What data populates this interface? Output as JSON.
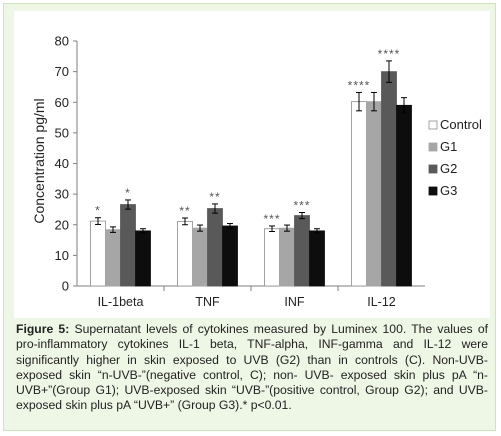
{
  "chart_data": {
    "type": "bar",
    "categories": [
      "IL-1beta",
      "TNF",
      "INF",
      "IL-12"
    ],
    "series": [
      {
        "name": "Control",
        "values": [
          21.2,
          21.1,
          18.7,
          60.2
        ],
        "errors": [
          1.1,
          1.1,
          0.9,
          3.0
        ],
        "color": "#ffffff"
      },
      {
        "name": "G1",
        "values": [
          18.4,
          18.9,
          18.9,
          60.2
        ],
        "errors": [
          0.9,
          1.0,
          1.0,
          3.0
        ],
        "color": "#a6a6a6"
      },
      {
        "name": "G2",
        "values": [
          26.6,
          25.3,
          23.0,
          70.0
        ],
        "errors": [
          1.5,
          1.5,
          1.0,
          3.5
        ],
        "color": "#595959"
      },
      {
        "name": "G3",
        "values": [
          18.0,
          19.6,
          18.0,
          59.0
        ],
        "errors": [
          0.7,
          0.8,
          0.7,
          2.5
        ],
        "color": "#0d0d0d"
      }
    ],
    "annotations": [
      [
        "*",
        "",
        "*",
        ""
      ],
      [
        "**",
        "",
        "**",
        ""
      ],
      [
        "***",
        "",
        "***",
        ""
      ],
      [
        "****",
        "",
        "****",
        ""
      ]
    ],
    "ylabel": "Concentration  pg/ml",
    "ylim": [
      0,
      80
    ],
    "yticks": [
      0,
      10,
      20,
      30,
      40,
      50,
      60,
      70,
      80
    ],
    "grid": false,
    "legend_position": "right"
  },
  "caption": {
    "label": "Figure 5:",
    "text": "Supernatant levels of cytokines measured by Luminex 100. The values of pro-inflammatory cytokines IL-1 beta, TNF-alpha, INF-gamma and IL-12 were significantly higher in skin exposed to UVB (G2) than in controls (C). Non-UVB-exposed skin “n-UVB-”(negative control, C); non- UVB- exposed skin plus pA “n-UVB+”(Group G1); UVB-exposed skin “UVB-”(positive control, Group G2); and UVB-exposed skin plus pA “UVB+” (Group G3).* p<0.01."
  }
}
